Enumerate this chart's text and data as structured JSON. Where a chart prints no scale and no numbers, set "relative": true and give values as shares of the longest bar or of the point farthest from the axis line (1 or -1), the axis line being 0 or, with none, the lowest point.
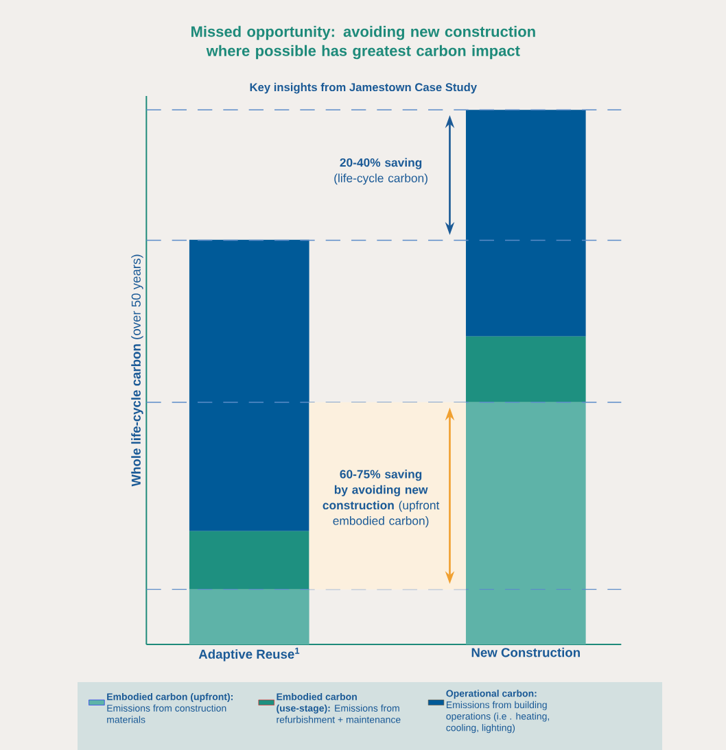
{
  "chart_data": {
    "type": "bar",
    "stacked": true,
    "relative": true,
    "title": "Missed opportunity: avoiding new construction where possible has greatest carbon impact",
    "subtitle": "Key insights from Jamestown Case Study",
    "ylabel": "**Whole life-cycle carbon**  (over 50 years)",
    "categories": [
      "Adaptive Reuse$^{1}$",
      "New Construction"
    ],
    "series": [
      {
        "name": "**Embodied carbon (upfront):** Emissions from construction materials",
        "color": "#5eb3a8",
        "values": [
          0.103,
          0.453
        ]
      },
      {
        "name": "**Embodied carbon (use-stage):** Emissions from refurbishment + maintenance",
        "color": "#1e9080",
        "values": [
          0.109,
          0.123
        ]
      },
      {
        "name": "**Operational carbon:** Emissions from building operations (i.e . heating, cooling, lighting)",
        "color": "#005a98",
        "values": [
          0.545,
          0.424
        ]
      }
    ],
    "ref_lines": [
      {
        "axis": "y",
        "value": 1.0,
        "color": "#5b8cc8",
        "line_style": "dashed"
      },
      {
        "axis": "y",
        "value": 0.756,
        "color": "#5b8cc8",
        "line_style": "dashed"
      },
      {
        "axis": "y",
        "value": 0.453,
        "color": "#5b8cc8",
        "line_style": "dashed"
      },
      {
        "axis": "y",
        "value": 0.103,
        "color": "#5b8cc8",
        "line_style": "dashed"
      }
    ],
    "bands": [
      {
        "axis": "y",
        "from": 0.103,
        "to": 0.453,
        "color": "#fcf0de"
      }
    ],
    "annotations": [
      "**20-40% saving** (life-cycle carbon)",
      "**60-75% saving by avoiding new construction** (upfront embodied carbon)"
    ],
    "legend": "bottom"
  }
}
